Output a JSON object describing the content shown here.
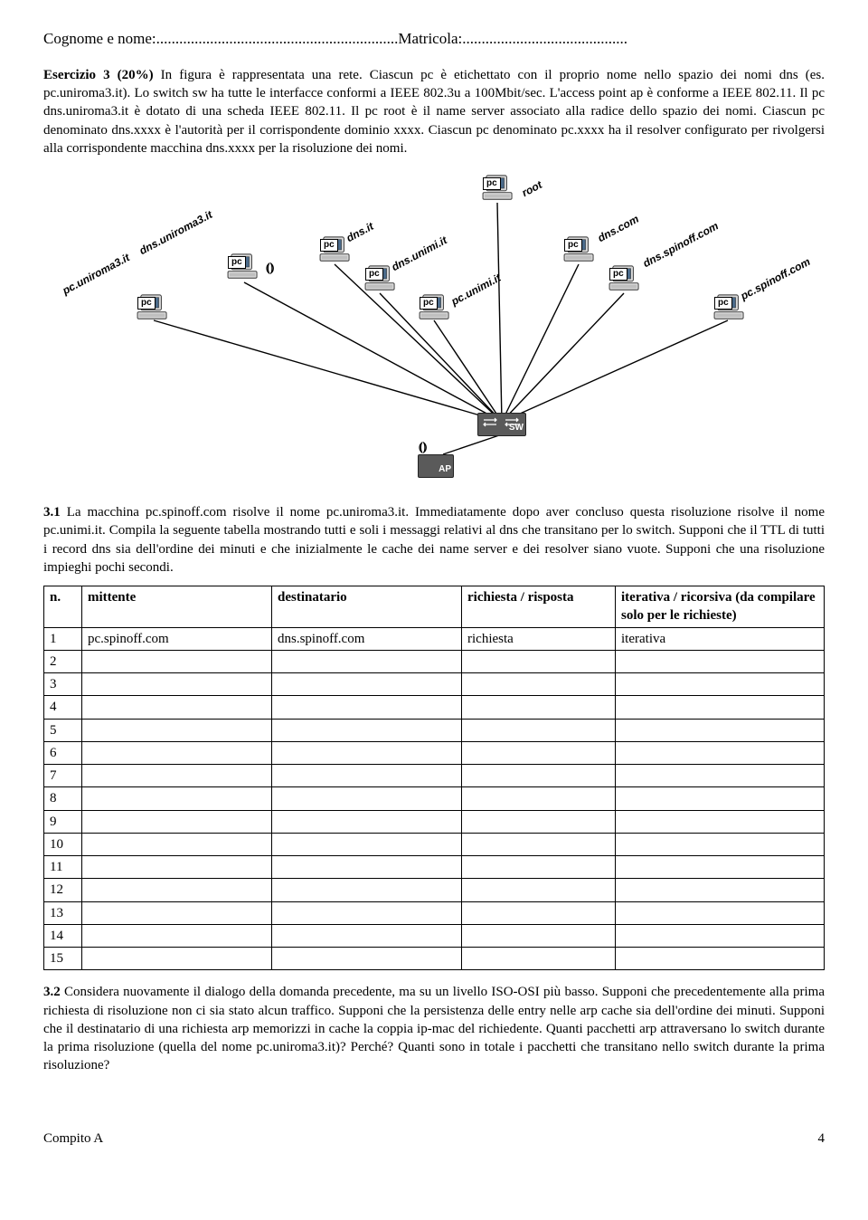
{
  "header": {
    "label_name": "Cognome e nome:",
    "dots1": "...............................................................",
    "label_mat": "Matricola:",
    "dots2": "..........................................."
  },
  "ex3_intro": {
    "title": "Esercizio 3 (20%)",
    "text": " In figura è rappresentata una rete. Ciascun pc è etichettato con il proprio nome nello spazio dei nomi dns (es. pc.uniroma3.it). Lo switch sw ha tutte le interfacce conformi a IEEE 802.3u a 100Mbit/sec. L'access point ap è conforme a IEEE 802.11. Il pc dns.uniroma3.it è dotato di una scheda IEEE 802.11. Il pc root è il name server associato alla radice dello spazio dei nomi. Ciascun pc denominato dns.xxxx è l'autorità per il corrispondente dominio xxxx. Ciascun pc denominato pc.xxxx ha il resolver configurato per rivolgersi alla corrispondente macchina dns.xxxx per la risoluzione dei nomi."
  },
  "diagram": {
    "pc_label": "pc",
    "sw_label": "SW",
    "ap_label": "AP",
    "labels": {
      "root": "root",
      "dns_uniroma3": "dns.uniroma3.it",
      "pc_uniroma3": "pc.uniroma3.it",
      "dns_it": "dns.it",
      "dns_unimi": "dns.unimi.it",
      "pc_unimi": "pc.unimi.it",
      "dns_com": "dns.com",
      "dns_spinoff": "dns.spinoff.com",
      "pc_spinoff": "pc.spinoff.com"
    }
  },
  "q31": {
    "title": "3.1",
    "text": " La macchina pc.spinoff.com risolve il nome pc.uniroma3.it. Immediatamente dopo aver concluso questa risoluzione risolve il nome pc.unimi.it. Compila la seguente tabella mostrando tutti e soli i messaggi relativi al dns che transitano per lo switch. Supponi che il TTL di tutti i record dns sia dell'ordine dei minuti e che inizialmente le cache dei name server e dei resolver siano vuote. Supponi che una risoluzione impieghi pochi secondi."
  },
  "table": {
    "headers": {
      "n": "n.",
      "mittente": "mittente",
      "destinatario": "destinatario",
      "richiesta": "richiesta / risposta",
      "mode": "iterativa / ricorsiva (da compilare solo per le richieste)"
    },
    "rows": [
      {
        "n": "1",
        "mit": "pc.spinoff.com",
        "dest": "dns.spinoff.com",
        "req": "richiesta",
        "mode": "iterativa"
      },
      {
        "n": "2",
        "mit": "",
        "dest": "",
        "req": "",
        "mode": ""
      },
      {
        "n": "3",
        "mit": "",
        "dest": "",
        "req": "",
        "mode": ""
      },
      {
        "n": "4",
        "mit": "",
        "dest": "",
        "req": "",
        "mode": ""
      },
      {
        "n": "5",
        "mit": "",
        "dest": "",
        "req": "",
        "mode": ""
      },
      {
        "n": "6",
        "mit": "",
        "dest": "",
        "req": "",
        "mode": ""
      },
      {
        "n": "7",
        "mit": "",
        "dest": "",
        "req": "",
        "mode": ""
      },
      {
        "n": "8",
        "mit": "",
        "dest": "",
        "req": "",
        "mode": ""
      },
      {
        "n": "9",
        "mit": "",
        "dest": "",
        "req": "",
        "mode": ""
      },
      {
        "n": "10",
        "mit": "",
        "dest": "",
        "req": "",
        "mode": ""
      },
      {
        "n": "11",
        "mit": "",
        "dest": "",
        "req": "",
        "mode": ""
      },
      {
        "n": "12",
        "mit": "",
        "dest": "",
        "req": "",
        "mode": ""
      },
      {
        "n": "13",
        "mit": "",
        "dest": "",
        "req": "",
        "mode": ""
      },
      {
        "n": "14",
        "mit": "",
        "dest": "",
        "req": "",
        "mode": ""
      },
      {
        "n": "15",
        "mit": "",
        "dest": "",
        "req": "",
        "mode": ""
      }
    ]
  },
  "q32": {
    "title": "3.2",
    "text": " Considera nuovamente il dialogo della domanda precedente, ma su un livello ISO-OSI più basso. Supponi che precedentemente alla prima richiesta di risoluzione non ci sia stato alcun traffico. Supponi che la persistenza delle entry nelle arp cache sia dell'ordine dei minuti. Supponi che il destinatario di una richiesta arp memorizzi in cache la coppia ip-mac del richiedente. Quanti pacchetti arp attraversano lo switch durante la prima risoluzione (quella del nome pc.uniroma3.it)? Perché? Quanti sono in totale i pacchetti che transitano nello switch durante la prima risoluzione?"
  },
  "footer": {
    "left": "Compito A",
    "page": "4"
  }
}
